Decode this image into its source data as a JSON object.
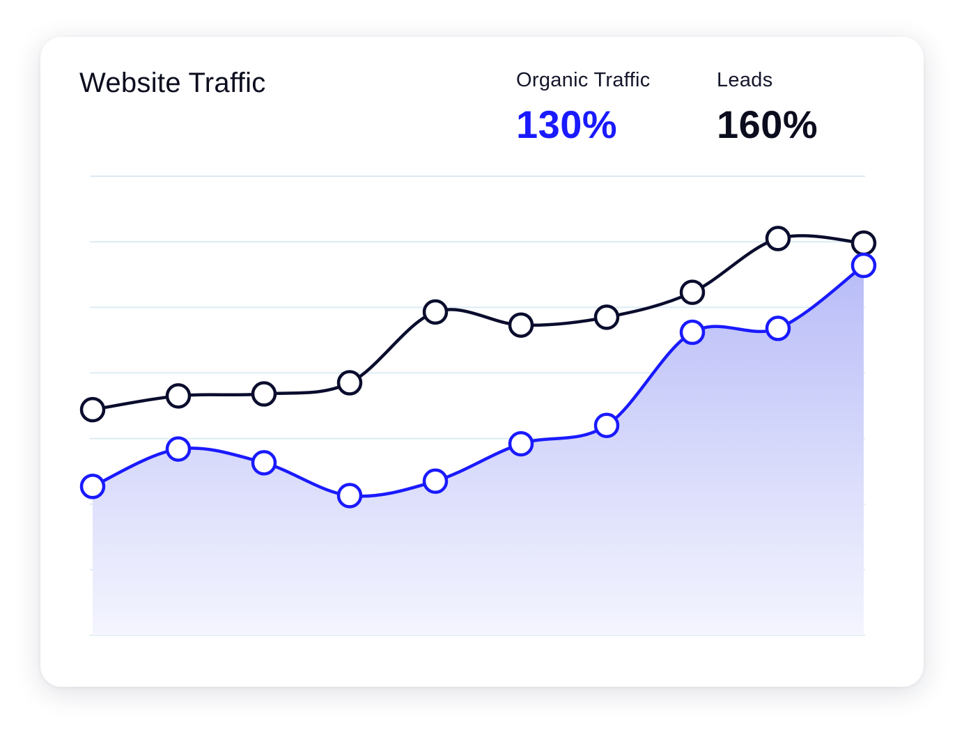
{
  "card": {
    "title": "Website Traffic"
  },
  "stats": {
    "organic": {
      "label": "Organic Traffic",
      "value": "130%",
      "color": "#1a1aff"
    },
    "leads": {
      "label": "Leads",
      "value": "160%",
      "color": "#0b0d1e"
    }
  },
  "chart_data": {
    "type": "area",
    "x": [
      1,
      2,
      3,
      4,
      5,
      6,
      7,
      8,
      9,
      10
    ],
    "ylim": [
      0,
      7
    ],
    "grid": true,
    "series": [
      {
        "values": [
          3.44,
          3.65,
          3.68,
          3.85,
          4.93,
          4.73,
          4.85,
          5.23,
          6.05,
          5.98
        ],
        "color": "#0b0d2e",
        "fill": false
      },
      {
        "values": [
          2.27,
          2.84,
          2.63,
          2.13,
          2.35,
          2.92,
          3.2,
          4.62,
          4.68,
          5.64
        ],
        "color": "#1a1aff",
        "fill": true
      }
    ]
  }
}
